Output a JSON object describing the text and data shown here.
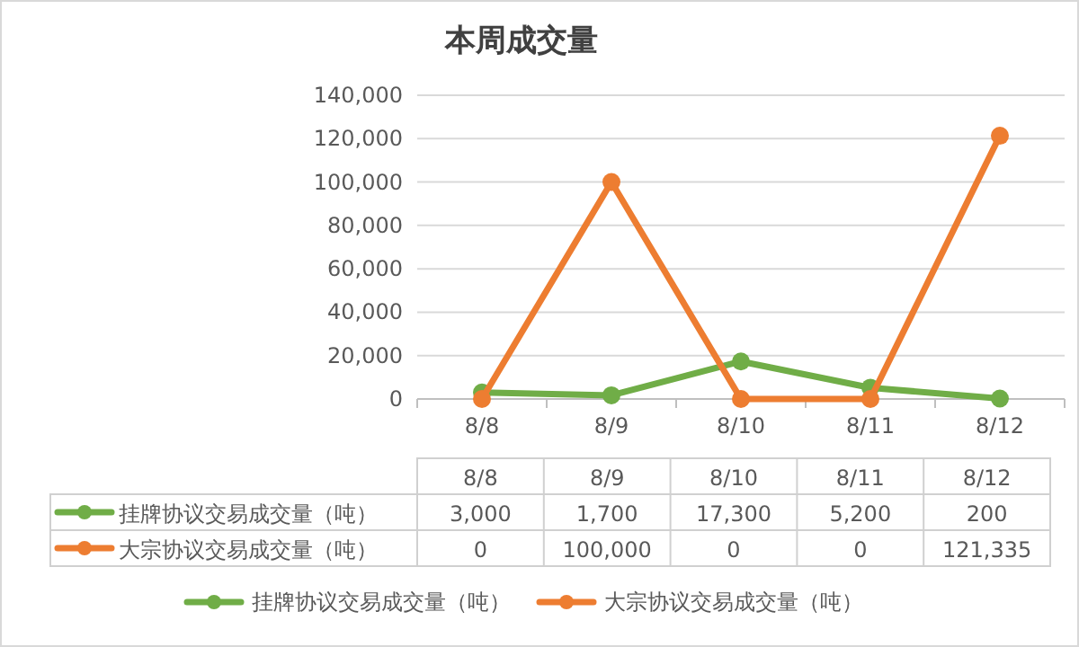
{
  "chart_data": {
    "type": "line",
    "title": "本周成交量",
    "categories": [
      "8/8",
      "8/9",
      "8/10",
      "8/11",
      "8/12"
    ],
    "series": [
      {
        "name": "挂牌协议交易成交量（吨）",
        "color": "#70ad47",
        "values": [
          3000,
          1700,
          17300,
          5200,
          200
        ],
        "value_labels": [
          "3,000",
          "1,700",
          "17,300",
          "5,200",
          "200"
        ]
      },
      {
        "name": "大宗协议交易成交量（吨）",
        "color": "#ed7d31",
        "values": [
          0,
          100000,
          0,
          0,
          121335
        ],
        "value_labels": [
          "0",
          "100,000",
          "0",
          "0",
          "121,335"
        ]
      }
    ],
    "ylim": [
      0,
      140000
    ],
    "yticks": [
      {
        "value": 0,
        "label": "0"
      },
      {
        "value": 20000,
        "label": "20,000"
      },
      {
        "value": 40000,
        "label": "40,000"
      },
      {
        "value": 60000,
        "label": "60,000"
      },
      {
        "value": 80000,
        "label": "80,000"
      },
      {
        "value": 100000,
        "label": "100,000"
      },
      {
        "value": 120000,
        "label": "120,000"
      },
      {
        "value": 140000,
        "label": "140,000"
      }
    ],
    "grid": "y",
    "legend": "bottom",
    "marker": "circle",
    "line_style": "solid"
  }
}
